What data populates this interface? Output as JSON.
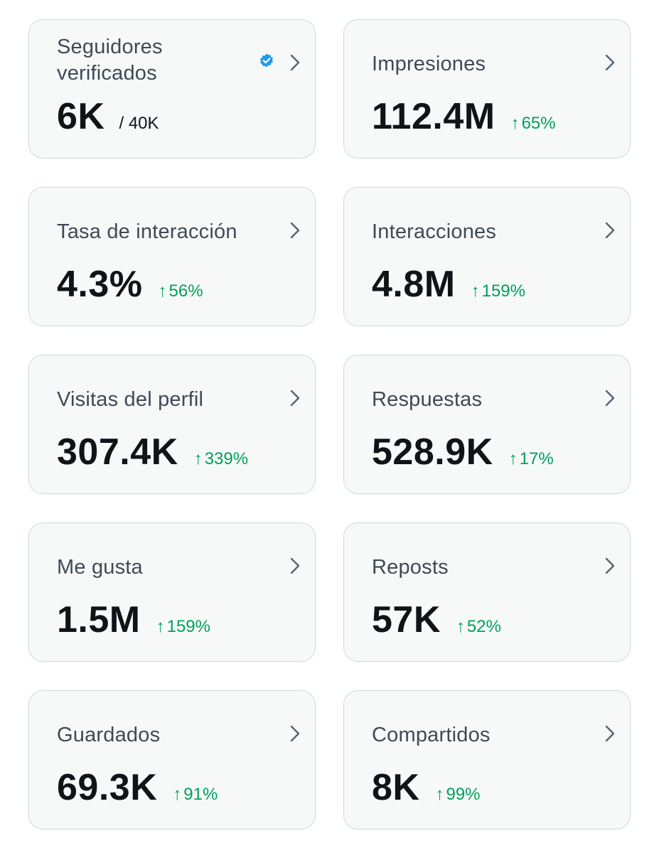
{
  "colors": {
    "card_bg": "#f7f9f9",
    "card_border": "#cfd9de",
    "label": "#3f4a55",
    "value": "#0f1419",
    "trend_up": "#00a05a",
    "verified_blue": "#1d9bf0",
    "chevron": "#536471"
  },
  "metrics": [
    {
      "id": "verified-followers",
      "label": "Seguidores verificados",
      "value": "6K",
      "sub": "/ 40K",
      "icon": "verified-badge-icon"
    },
    {
      "id": "impressions",
      "label": "Impresiones",
      "value": "112.4M",
      "trend": "65%",
      "trend_icon": "arrow-up-icon"
    },
    {
      "id": "engagement-rate",
      "label": "Tasa de interacción",
      "value": "4.3%",
      "trend": "56%",
      "trend_icon": "arrow-up-icon"
    },
    {
      "id": "engagements",
      "label": "Interacciones",
      "value": "4.8M",
      "trend": "159%",
      "trend_icon": "arrow-up-icon"
    },
    {
      "id": "profile-visits",
      "label": "Visitas del perfil",
      "value": "307.4K",
      "trend": "339%",
      "trend_icon": "arrow-up-icon"
    },
    {
      "id": "replies",
      "label": "Respuestas",
      "value": "528.9K",
      "trend": "17%",
      "trend_icon": "arrow-up-icon"
    },
    {
      "id": "likes",
      "label": "Me gusta",
      "value": "1.5M",
      "trend": "159%",
      "trend_icon": "arrow-up-icon"
    },
    {
      "id": "reposts",
      "label": "Reposts",
      "value": "57K",
      "trend": "52%",
      "trend_icon": "arrow-up-icon"
    },
    {
      "id": "bookmarks",
      "label": "Guardados",
      "value": "69.3K",
      "trend": "91%",
      "trend_icon": "arrow-up-icon"
    },
    {
      "id": "shares",
      "label": "Compartidos",
      "value": "8K",
      "trend": "99%",
      "trend_icon": "arrow-up-icon"
    }
  ],
  "glyphs": {
    "arrow_up": "↑"
  }
}
